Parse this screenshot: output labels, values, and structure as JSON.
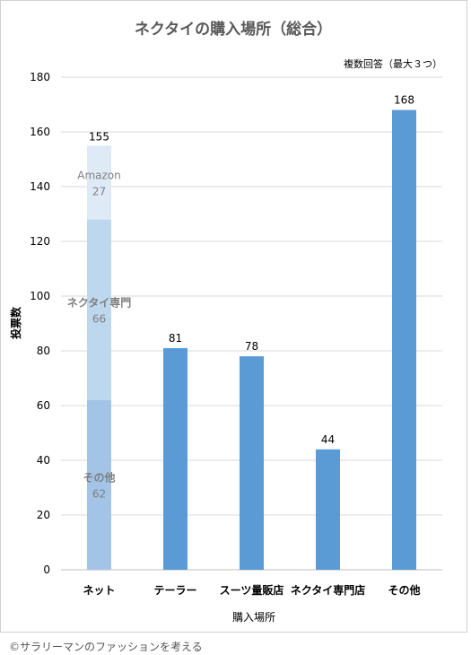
{
  "chart_data": {
    "type": "bar",
    "title": "ネクタイの購入場所（総合）",
    "note": "複数回答（最大３つ）",
    "xlabel": "購入場所",
    "ylabel": "投票数",
    "ylim": [
      0,
      180
    ],
    "yticks": [
      0,
      20,
      40,
      60,
      80,
      100,
      120,
      140,
      160,
      180
    ],
    "grid": true,
    "categories": [
      "ネット",
      "テーラー",
      "スーツ量販店",
      "ネクタイ専門店",
      "その他"
    ],
    "values": [
      155,
      81,
      78,
      44,
      168
    ],
    "stacked_breakdown": {
      "category": "ネット",
      "total": 155,
      "segments": [
        {
          "name": "その他",
          "value": 62,
          "color": "#a3c4e6"
        },
        {
          "name": "ネクタイ専門",
          "value": 66,
          "color": "#bdd7ee"
        },
        {
          "name": "Amazon",
          "value": 27,
          "color": "#deebf7"
        }
      ]
    },
    "bar_color": "#5b9bd5",
    "text_color": "#595959",
    "grid_color": "#d9d9d9"
  },
  "credit": "©サラリーマンのファッションを考える"
}
